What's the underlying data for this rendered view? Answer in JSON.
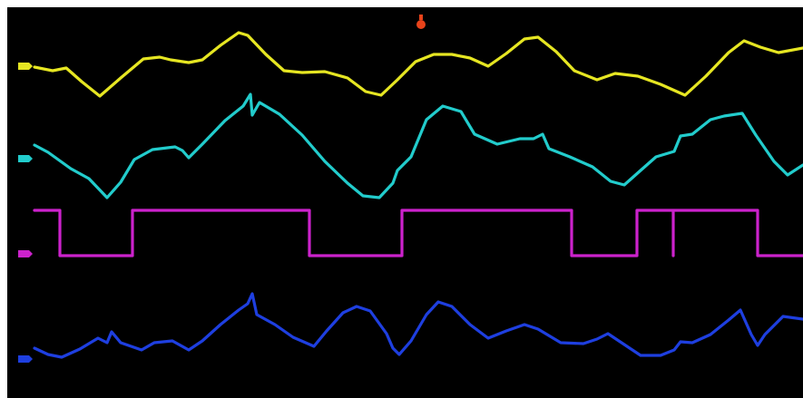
{
  "screen": {
    "background": "#000000",
    "border": "#ffffff"
  },
  "trigger_marker": {
    "icon": "trigger-position-marker",
    "color": "#e8431a",
    "text": ""
  },
  "channels": [
    {
      "name_icon": "channel-1-marker",
      "color": "#e6e622",
      "kind": "analog"
    },
    {
      "name_icon": "channel-2-marker",
      "color": "#22cccc",
      "kind": "analog"
    },
    {
      "name_icon": "channel-3-marker",
      "color": "#cc22cc",
      "kind": "digital"
    },
    {
      "name_icon": "channel-4-marker",
      "color": "#1e3fe0",
      "kind": "analog"
    }
  ]
}
